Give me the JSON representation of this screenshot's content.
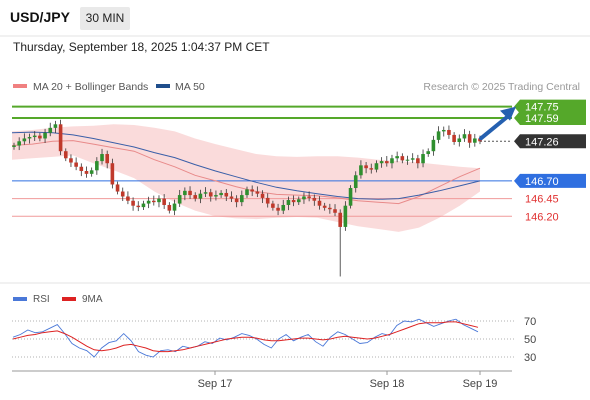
{
  "header": {
    "symbol": "USD/JPY",
    "timeframe": "30 MIN",
    "datetime": "Thursday, September 18, 2025 1:04:37 PM CET"
  },
  "legend": {
    "items": [
      {
        "label": "MA 20 + Bollinger Bands",
        "color": "#f08080"
      },
      {
        "label": "MA 50",
        "color": "#1f4e8c"
      }
    ],
    "credit": "Research © 2025 Trading Central"
  },
  "colors": {
    "up": "#2f8f2f",
    "down": "#c0392b",
    "bollinger_fill": "#fad7d7",
    "ma20": "#e88a8a",
    "ma50": "#3a5fa8",
    "resistance": "#55a82a",
    "pivot": "#2f6fe0",
    "support": "#f09a9a",
    "price_tag": "#333333",
    "arrow": "#2560b0",
    "rsi": "#4a78d8",
    "rsi_ma": "#dd2222"
  },
  "chart_data": [
    {
      "type": "candlestick",
      "title": "USD/JPY 30 MIN",
      "price_axis_range": [
        145.3,
        147.9
      ],
      "x_labels": [
        "Sep 17",
        "Sep 18",
        "Sep 19"
      ],
      "levels": [
        {
          "value": 147.75,
          "label": "147.75",
          "kind": "resistance"
        },
        {
          "value": 147.59,
          "label": "147.59",
          "kind": "resistance"
        },
        {
          "value": 147.26,
          "label": "147.26",
          "kind": "last"
        },
        {
          "value": 146.7,
          "label": "146.70",
          "kind": "pivot"
        },
        {
          "value": 146.45,
          "label": "146.45",
          "kind": "support"
        },
        {
          "value": 146.2,
          "label": "146.20",
          "kind": "support"
        }
      ],
      "arrow_target": 147.75,
      "close_path": [
        147.2,
        147.26,
        147.3,
        147.32,
        147.34,
        147.3,
        147.38,
        147.45,
        147.5,
        147.12,
        147.02,
        146.96,
        146.9,
        146.84,
        146.8,
        146.85,
        146.98,
        147.08,
        146.95,
        146.65,
        146.55,
        146.48,
        146.42,
        146.35,
        146.33,
        146.38,
        146.42,
        146.4,
        146.45,
        146.36,
        146.28,
        146.38,
        146.5,
        146.56,
        146.5,
        146.45,
        146.52,
        146.54,
        146.48,
        146.5,
        146.53,
        146.48,
        146.45,
        146.4,
        146.5,
        146.58,
        146.55,
        146.52,
        146.46,
        146.38,
        146.32,
        146.28,
        146.36,
        146.43,
        146.4,
        146.44,
        146.48,
        146.46,
        146.42,
        146.35,
        146.32,
        146.3,
        146.25,
        146.05,
        146.35,
        146.6,
        146.78,
        146.92,
        146.88,
        146.86,
        146.95,
        146.98,
        146.95,
        147.02,
        147.05,
        146.99,
        147.0,
        147.02,
        146.95,
        147.08,
        147.12,
        147.28,
        147.4,
        147.42,
        147.35,
        147.25,
        147.3,
        147.36,
        147.24,
        147.3,
        147.26
      ],
      "bollinger": {
        "upper": [
          147.4,
          147.42,
          147.45,
          147.47,
          147.48,
          147.5,
          147.49,
          147.45,
          147.4,
          147.3,
          147.22,
          147.15,
          147.08,
          147.05,
          147.04,
          147.05,
          147.05,
          147.03,
          147.0,
          146.98,
          146.96,
          146.93,
          146.9,
          146.88
        ],
        "lower": [
          147.0,
          147.02,
          147.04,
          147.06,
          146.95,
          146.85,
          146.74,
          146.55,
          146.4,
          146.28,
          146.2,
          146.17,
          146.16,
          146.18,
          146.19,
          146.18,
          146.12,
          146.06,
          146.02,
          145.98,
          146.04,
          146.18,
          146.35,
          146.55
        ]
      },
      "ma20": [
        147.2,
        147.22,
        147.26,
        147.27,
        147.22,
        147.17,
        147.12,
        147.0,
        146.9,
        146.78,
        146.7,
        146.62,
        146.55,
        146.51,
        146.5,
        146.49,
        146.46,
        146.42,
        146.4,
        146.38,
        146.48,
        146.62,
        146.76,
        146.88
      ],
      "ma50": [
        147.38,
        147.39,
        147.38,
        147.35,
        147.3,
        147.24,
        147.18,
        147.1,
        147.03,
        146.93,
        146.84,
        146.76,
        146.68,
        146.61,
        146.56,
        146.52,
        146.48,
        146.45,
        146.44,
        146.45,
        146.5,
        146.56,
        146.63,
        146.7
      ]
    },
    {
      "type": "line",
      "title": "RSI",
      "series": [
        {
          "name": "RSI"
        },
        {
          "name": "9MA"
        }
      ],
      "y_ticks": [
        70,
        50,
        30
      ],
      "ylim": [
        20,
        80
      ],
      "rsi": [
        52,
        55,
        60,
        57,
        58,
        62,
        66,
        56,
        45,
        40,
        37,
        30,
        40,
        46,
        48,
        56,
        48,
        36,
        32,
        30,
        37,
        38,
        36,
        42,
        40,
        42,
        47,
        45,
        51,
        49,
        52,
        56,
        54,
        50,
        44,
        40,
        50,
        55,
        48,
        52,
        55,
        47,
        42,
        52,
        58,
        55,
        50,
        45,
        46,
        52,
        56,
        54,
        65,
        70,
        69,
        72,
        68,
        64,
        67,
        70,
        72,
        66,
        62,
        58
      ],
      "ma9": [
        50,
        52,
        54,
        55,
        57,
        58,
        59,
        56,
        52,
        47,
        42,
        38,
        37,
        38,
        40,
        43,
        44,
        42,
        40,
        37,
        36,
        36,
        37,
        38,
        40,
        42,
        44,
        46,
        48,
        50,
        51,
        52,
        52,
        51,
        49,
        48,
        48,
        49,
        50,
        51,
        51,
        50,
        49,
        50,
        52,
        53,
        52,
        51,
        50,
        51,
        53,
        55,
        58,
        61,
        64,
        67,
        68,
        68,
        68,
        69,
        69,
        67,
        65,
        63
      ]
    }
  ]
}
